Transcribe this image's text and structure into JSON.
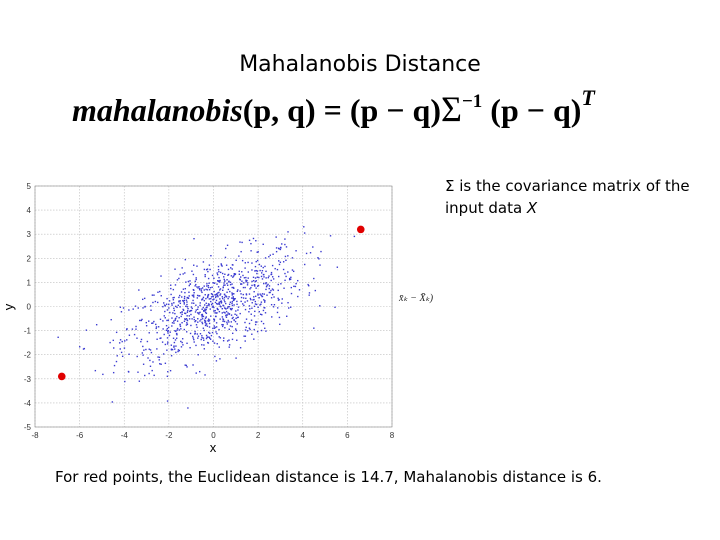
{
  "slide": {
    "title": "Mahalanobis Distance",
    "formula": {
      "function_name": "mahalanobis",
      "args": "(p, q)",
      "equals": "=",
      "left_term": "(p − q)",
      "sigma": "Σ",
      "inverse_exponent": "−1",
      "right_term": "(p − q)",
      "transpose": "T"
    },
    "note": {
      "text": "Σ is the covariance matrix of the input data ",
      "variable": "X"
    },
    "caption": "For red points, the Euclidean distance is 14.7, Mahalanobis distance is 6.",
    "overlay_fragment": "x̄ₖ − X̄ₖ)"
  },
  "colors": {
    "cloud": "#3b3bd1",
    "highlight": "#e00000",
    "grid": "#bdbdbd"
  },
  "chart_data": {
    "type": "scatter",
    "xlabel": "x",
    "ylabel": "y",
    "xlim": [
      -8,
      8
    ],
    "ylim": [
      -5,
      5
    ],
    "xticks": [
      "-8",
      "-6",
      "-4",
      "-2",
      "0",
      "2",
      "4",
      "6",
      "8"
    ],
    "yticks": [
      "5",
      "4",
      "3",
      "2",
      "1",
      "0",
      "-1",
      "-2",
      "-3",
      "-4",
      "-5"
    ],
    "grid": true,
    "series": [
      {
        "points": "correlated gaussian cloud, about 1000 points centered at (0, 0)",
        "color": "#3b3bd1"
      },
      {
        "points": [
          [
            -6.8,
            -2.9
          ],
          [
            6.6,
            3.2
          ]
        ],
        "color": "#e00000"
      }
    ]
  }
}
